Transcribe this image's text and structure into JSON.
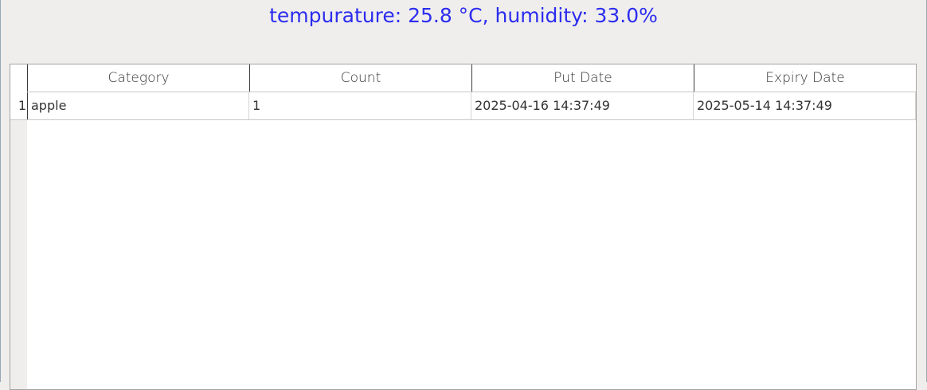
{
  "status_line": "tempurature: 25.8 °C, humidity: 33.0%",
  "colors": {
    "status_text": "#2c2cf0",
    "window_background": "#efeeec",
    "table_background": "#ffffff"
  },
  "table": {
    "columns": [
      "Category",
      "Count",
      "Put Date",
      "Expiry Date"
    ],
    "rows": [
      {
        "index": "1",
        "cells": [
          "apple",
          "1",
          "2025-04-16 14:37:49",
          "2025-05-14 14:37:49"
        ]
      }
    ]
  }
}
